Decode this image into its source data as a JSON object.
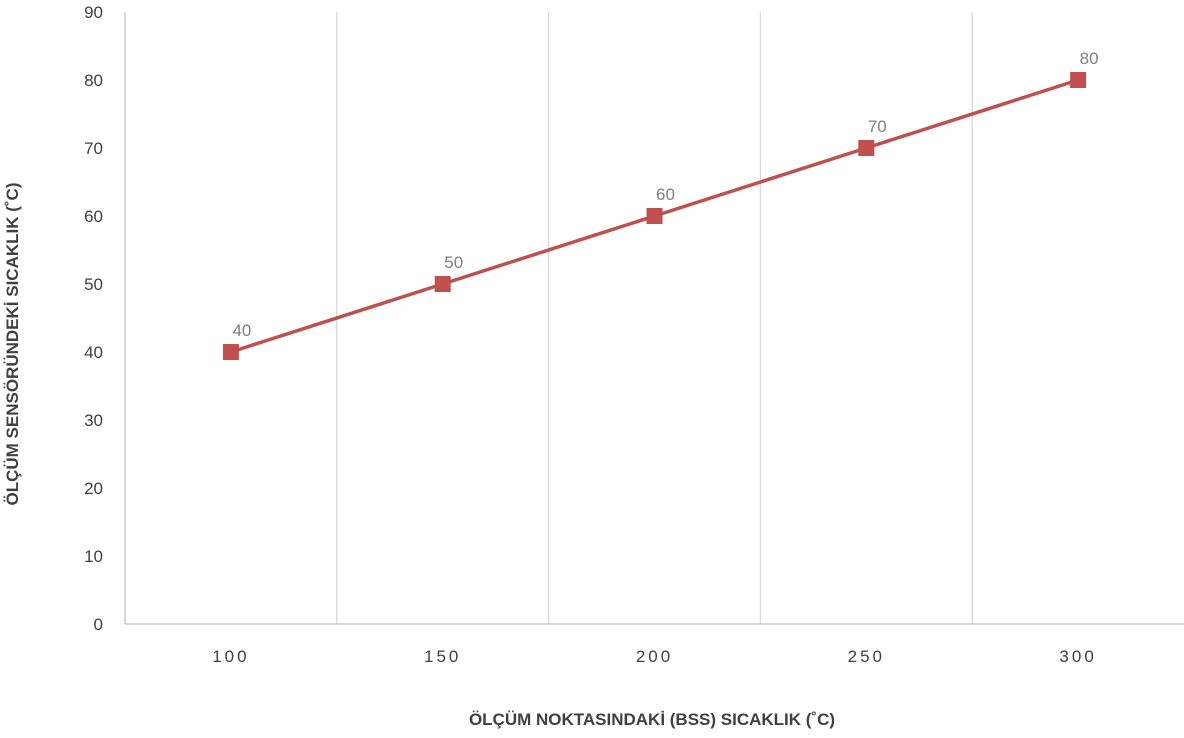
{
  "chart_data": {
    "type": "line",
    "categories": [
      "100",
      "150",
      "200",
      "250",
      "300"
    ],
    "series": [
      {
        "values": [
          40,
          50,
          60,
          70,
          80
        ],
        "color": "#c0504d",
        "marker": "square"
      }
    ],
    "data_labels": [
      "40",
      "50",
      "60",
      "70",
      "80"
    ],
    "xlabel": "ÖLÇÜM NOKTASINDAKİ (BSS) SICAKLIK (˚C)",
    "ylabel": "ÖLÇÜM SENSÖRÜNDEKİ SICAKLIK (˚C)",
    "ylim": [
      0,
      90
    ],
    "ytick_step": 10,
    "grid": "vertical-between-categories",
    "legend": "none",
    "colors": {
      "gridline": "#d9d9d9",
      "axis": "#bfbfbf",
      "text": "#404040",
      "data_label": "#7f7f7f"
    }
  }
}
